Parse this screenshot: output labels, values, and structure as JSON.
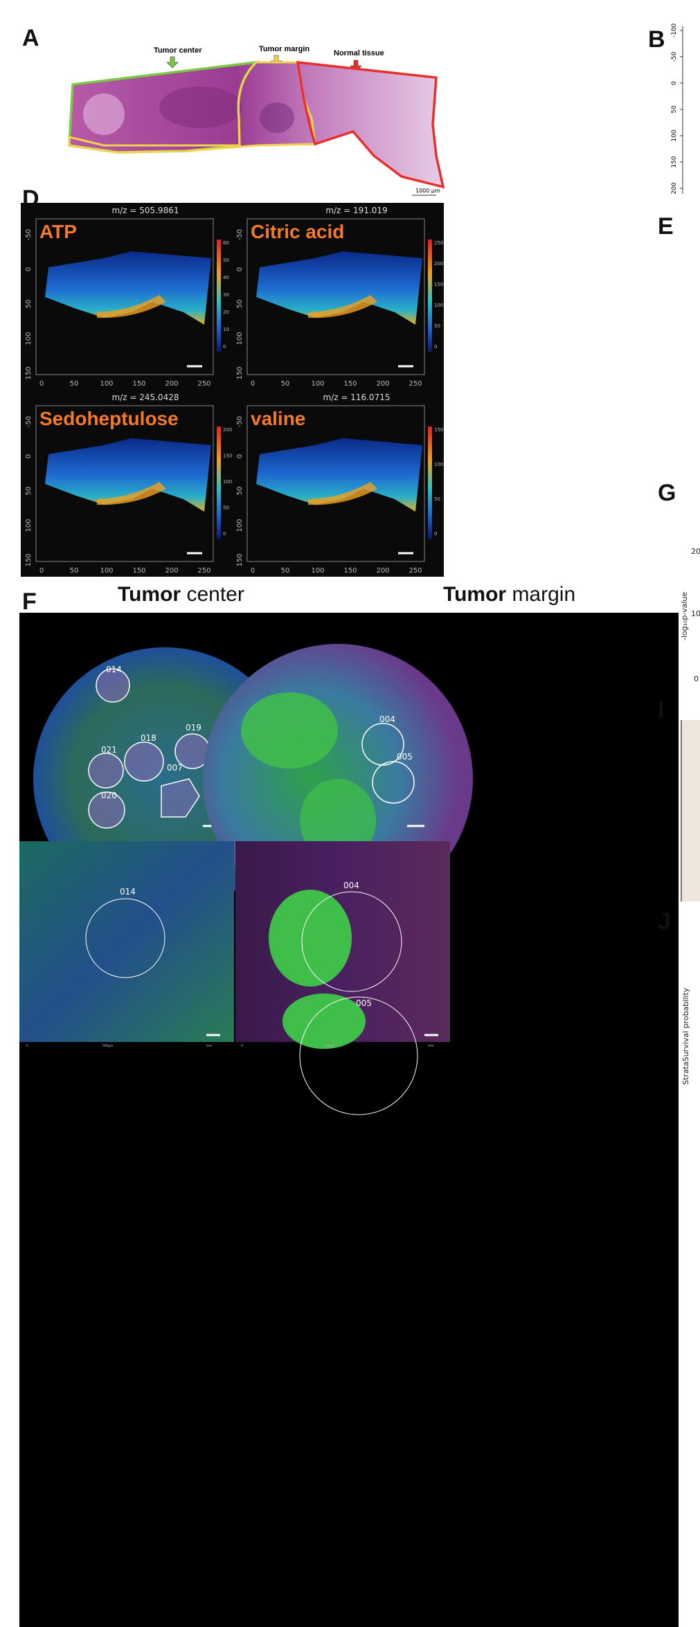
{
  "panels": {
    "A": "A",
    "B": "B",
    "D": "D",
    "E": "E",
    "F": "F",
    "G": "G",
    "I": "I",
    "J": "J"
  },
  "panel_a": {
    "tumor_center": "Tumor center",
    "tumor_margin": "Tumor margin",
    "normal_tissue": "Normal tissue",
    "scale": "1000 µm",
    "region_colors": {
      "center": "#7ac943",
      "margin": "#f2d34a",
      "normal": "#e8302a"
    }
  },
  "panel_b_ticks": [
    "-100",
    "-50",
    "0",
    "50",
    "100",
    "150",
    "200"
  ],
  "msi_maps": [
    {
      "metabolite": "ATP",
      "mz": "m/z = 505.9861",
      "colorbar": [
        "60",
        "50",
        "40",
        "30",
        "20",
        "10",
        "0"
      ]
    },
    {
      "metabolite": "Citric acid",
      "mz": "m/z = 191.019",
      "colorbar": [
        "250",
        "200",
        "150",
        "100",
        "50",
        "0"
      ]
    },
    {
      "metabolite": "Sedoheptulose",
      "mz": "m/z = 245.0428",
      "colorbar": [
        "200",
        "150",
        "100",
        "50",
        "0"
      ]
    },
    {
      "metabolite": "valine",
      "mz": "m/z = 116.0715",
      "colorbar": [
        "150",
        "100",
        "50",
        "0"
      ]
    }
  ],
  "msi_axes": {
    "x_ticks": [
      "0",
      "50",
      "100",
      "150",
      "200",
      "250"
    ],
    "y_ticks": [
      "-50",
      "0",
      "50",
      "100",
      "150"
    ]
  },
  "panel_f": {
    "col_center_bold": "Tumor",
    "col_center_rest": " center",
    "col_margin_bold": "Tumor",
    "col_margin_rest": " margin",
    "rois_center": [
      "014",
      "018",
      "019",
      "021",
      "020",
      "007"
    ],
    "rois_margin": [
      "004",
      "005"
    ],
    "zoom_center_roi": "014",
    "zoom_margin_rois": [
      "004",
      "005"
    ],
    "bottom_scale_left": [
      "0",
      "300µm",
      "Inm"
    ],
    "bottom_scale_right": [
      "0",
      "300µm",
      "Inm"
    ]
  },
  "right_edge": {
    "g_ticks": [
      "20",
      "10",
      "0"
    ],
    "g_ylabel": "-log₁₀p-value",
    "j_ylabel": "Survival probability",
    "j_strata": "Strata"
  }
}
